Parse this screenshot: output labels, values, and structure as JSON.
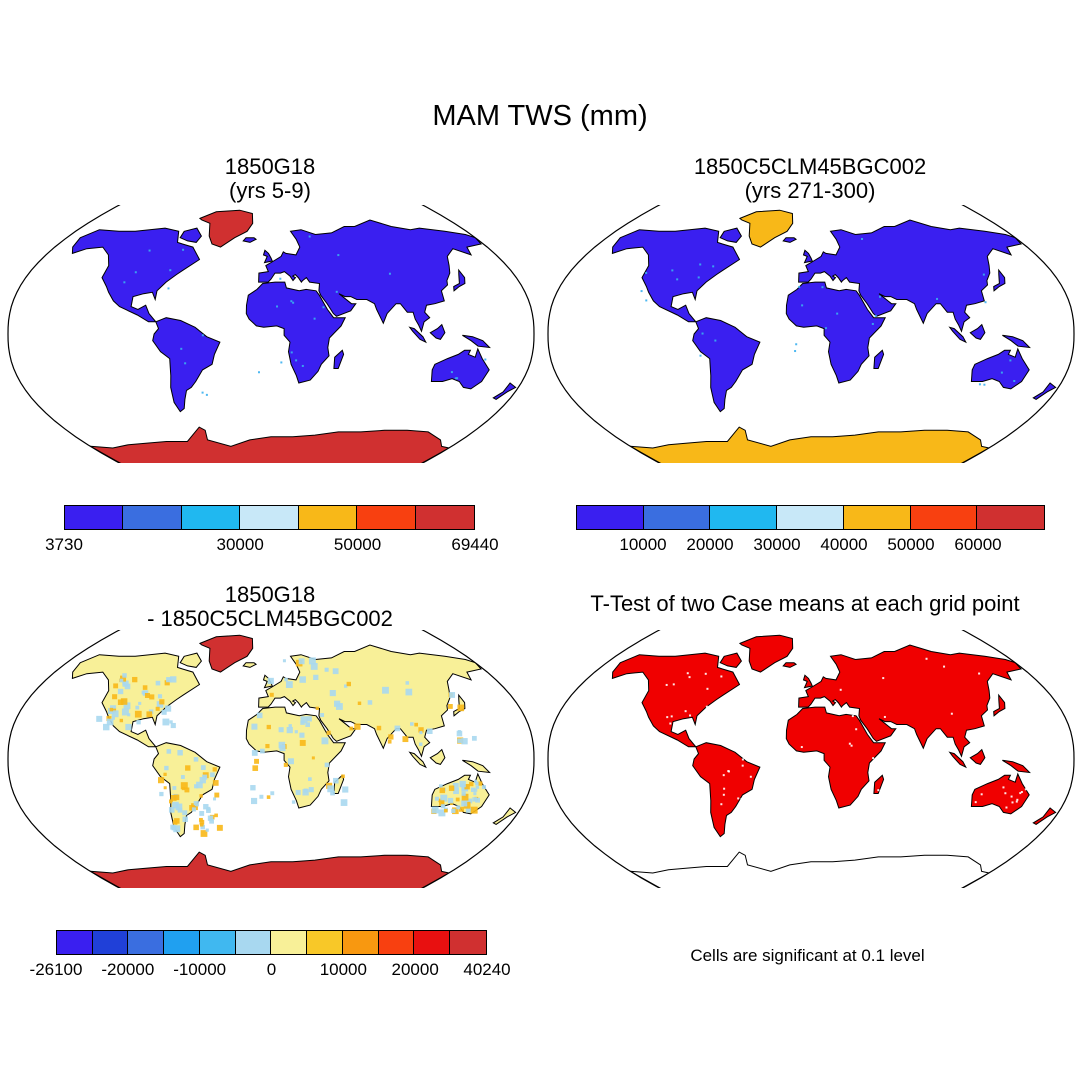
{
  "title": "MAM TWS (mm)",
  "panels": [
    {
      "title_line1": "1850G18",
      "title_line2": "(yrs 5-9)",
      "land_color": "#3a1ff0",
      "greenland_color": "#d03030",
      "antarctica_color": "#d03030",
      "speckle_color": "#3ab0f0",
      "colorbar": {
        "colors": [
          "#3a1ff0",
          "#3a6ee0",
          "#20b8f0",
          "#c8e8f8",
          "#f8b818",
          "#f84010",
          "#d03030"
        ],
        "tick_labels": [
          "3730",
          "30000",
          "50000",
          "69440"
        ]
      }
    },
    {
      "title_line1": "1850C5CLM45BGC002",
      "title_line2": "(yrs 271-300)",
      "land_color": "#3a1ff0",
      "greenland_color": "#f8b818",
      "antarctica_color": "#f8b818",
      "speckle_color": "#3ab0f0",
      "colorbar": {
        "colors": [
          "#3a1ff0",
          "#3a6ee0",
          "#20b8f0",
          "#c8e8f8",
          "#f8b818",
          "#f84010",
          "#d03030"
        ],
        "tick_labels": [
          "10000",
          "20000",
          "30000",
          "40000",
          "50000",
          "60000"
        ]
      }
    },
    {
      "title_line1": "1850G18",
      "title_line2": "- 1850C5CLM45BGC002",
      "land_color": "#f8f098",
      "greenland_color": "#d03030",
      "antarctica_color": "#d03030",
      "speckle_color": "#a8d8f0",
      "secondary_speckle_color": "#f8b818",
      "colorbar": {
        "colors": [
          "#3a1ff0",
          "#2040d8",
          "#3a6ee0",
          "#20a0f0",
          "#40b8f0",
          "#a8d8f0",
          "#f8f098",
          "#f8c828",
          "#f89810",
          "#f84010",
          "#e81010",
          "#d03030"
        ],
        "tick_labels": [
          "-26100",
          "-20000",
          "-10000",
          "0",
          "10000",
          "20000",
          "40240"
        ]
      }
    },
    {
      "title_line1": "T-Test of two Case means at each grid point",
      "land_color": "#f00000",
      "greenland_color": "#f00000",
      "antarctica_color": "#ffffff",
      "speckle_color": "#ffffff",
      "note": "Cells are significant at 0.1 level"
    }
  ]
}
